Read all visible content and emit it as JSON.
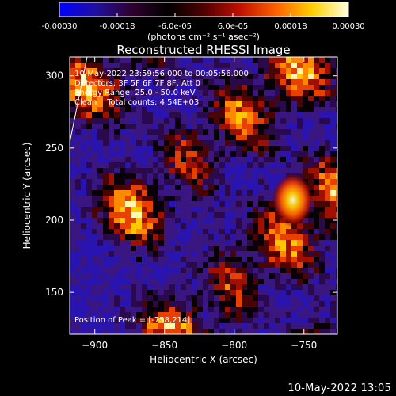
{
  "chart_data": {
    "type": "heatmap",
    "title": "Reconstructed RHESSI Image",
    "xlabel": "Heliocentric X (arcsec)",
    "ylabel": "Heliocentric Y (arcsec)",
    "xlim": [
      -918,
      -726
    ],
    "ylim": [
      121,
      313
    ],
    "xticks": [
      -900,
      -850,
      -800,
      -750
    ],
    "yticks": [
      150,
      200,
      250,
      300
    ],
    "colorbar": {
      "range": [
        -0.0003,
        0.0003
      ],
      "ticks": [
        "-0.00030",
        "-0.00018",
        "-6.0e-05",
        "6.0e-05",
        "0.00018",
        "0.00030"
      ],
      "label": "(photons cm⁻² s⁻¹ asec⁻²)",
      "colormap": [
        "#0000ff",
        "#2010a0",
        "#300030",
        "#000000",
        "#500000",
        "#c01000",
        "#ff6000",
        "#ffd000",
        "#ffffe0"
      ]
    },
    "annotations": [
      "10-May-2022 23:59:56.000 to 00:05:56.000",
      "Detectors: 3F 5F 6F 7F 8F, Att 0",
      "Energy Range: 25.0 - 50.0 keV",
      "Clean    Total counts: 4.54E+03"
    ],
    "peak_label": "Position of Peak = [-758,214]",
    "peak": [
      -758,
      214
    ]
  },
  "footer": {
    "date": "10-May-2022 13:05"
  }
}
